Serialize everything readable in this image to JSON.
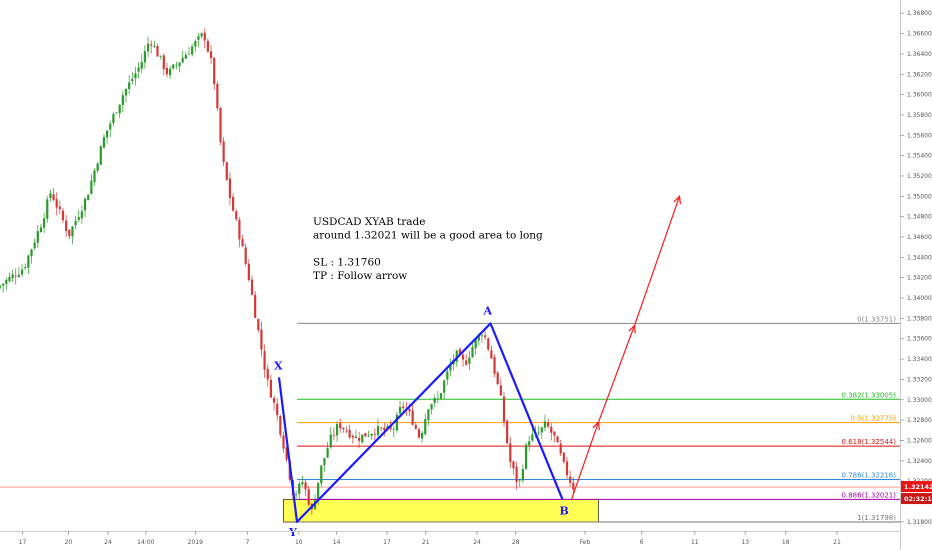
{
  "chart_data": {
    "type": "candlestick",
    "y_axis": {
      "range": [
        1.3171,
        1.3693
      ],
      "ticks": [
        "1.36800",
        "1.36600",
        "1.36400",
        "1.36200",
        "1.36000",
        "1.35800",
        "1.35600",
        "1.35400",
        "1.35200",
        "1.35000",
        "1.34800",
        "1.34600",
        "1.34400",
        "1.34200",
        "1.34000",
        "1.33800",
        "1.33600",
        "1.33400",
        "1.33200",
        "1.33000",
        "1.32800",
        "1.32600",
        "1.32400",
        "1.32200",
        "1.32000",
        "1.31800"
      ]
    },
    "x_axis": {
      "range": [
        0,
        100
      ],
      "ticks": [
        {
          "label": "17",
          "x": 2.5
        },
        {
          "label": "20",
          "x": 7.6
        },
        {
          "label": "24",
          "x": 12.0
        },
        {
          "label": "14:00",
          "x": 16.2
        },
        {
          "label": "2019",
          "x": 21.7
        },
        {
          "label": "7",
          "x": 27.5
        },
        {
          "label": "10",
          "x": 33.2
        },
        {
          "label": "14",
          "x": 37.4
        },
        {
          "label": "17",
          "x": 43.0
        },
        {
          "label": "21",
          "x": 47.3
        },
        {
          "label": "24",
          "x": 53.0
        },
        {
          "label": "28",
          "x": 57.3
        },
        {
          "label": "Feb",
          "x": 65.0
        },
        {
          "label": "6",
          "x": 71.3
        },
        {
          "label": "11",
          "x": 77.2
        },
        {
          "label": "13",
          "x": 82.8
        },
        {
          "label": "18",
          "x": 87.3
        },
        {
          "label": "21",
          "x": 93.0
        }
      ]
    },
    "price_path": [
      [
        0,
        1.341
      ],
      [
        3,
        1.343
      ],
      [
        5,
        1.3475
      ],
      [
        6,
        1.3505
      ],
      [
        8,
        1.3462
      ],
      [
        10,
        1.35
      ],
      [
        12,
        1.356
      ],
      [
        14,
        1.36
      ],
      [
        16,
        1.363
      ],
      [
        17,
        1.3655
      ],
      [
        19,
        1.362
      ],
      [
        21,
        1.364
      ],
      [
        23,
        1.366
      ],
      [
        24,
        1.3625
      ],
      [
        25,
        1.354
      ],
      [
        26,
        1.3495
      ],
      [
        27,
        1.346
      ],
      [
        28,
        1.342
      ],
      [
        29,
        1.337
      ],
      [
        30,
        1.332
      ],
      [
        31,
        1.329
      ],
      [
        32,
        1.325
      ],
      [
        33,
        1.3205
      ],
      [
        34,
        1.322
      ],
      [
        35,
        1.319
      ],
      [
        36,
        1.3232
      ],
      [
        37,
        1.326
      ],
      [
        38,
        1.3276
      ],
      [
        40,
        1.3262
      ],
      [
        42,
        1.327
      ],
      [
        44,
        1.327
      ],
      [
        45,
        1.3295
      ],
      [
        46,
        1.3284
      ],
      [
        47,
        1.3262
      ],
      [
        48,
        1.3296
      ],
      [
        49,
        1.33
      ],
      [
        50,
        1.3325
      ],
      [
        51,
        1.3345
      ],
      [
        52,
        1.3335
      ],
      [
        53,
        1.3355
      ],
      [
        54,
        1.3368
      ],
      [
        55,
        1.334
      ],
      [
        56,
        1.33
      ],
      [
        57,
        1.324
      ],
      [
        58,
        1.3215
      ],
      [
        59,
        1.3262
      ],
      [
        60,
        1.3265
      ],
      [
        61,
        1.3276
      ],
      [
        62,
        1.3262
      ],
      [
        63,
        1.3235
      ],
      [
        64,
        1.3214
      ]
    ],
    "pattern": {
      "name": "XYAB",
      "points": [
        {
          "label": "X",
          "x": 31,
          "y": 1.3322
        },
        {
          "label": "Y",
          "x": 33,
          "y": 1.318
        },
        {
          "label": "A",
          "x": 54.5,
          "y": 1.33751
        },
        {
          "label": "B",
          "x": 62.5,
          "y": 1.3202
        }
      ]
    },
    "projection_arrow": [
      [
        63.5,
        1.3202
      ],
      [
        66.5,
        1.3278
      ],
      [
        70.5,
        1.3373
      ],
      [
        75.5,
        1.35
      ]
    ],
    "fib_levels": [
      {
        "label": "0(1.33751)",
        "value": 1.33751,
        "color": "#888888"
      },
      {
        "label": "0.382(1.33005)",
        "value": 1.33005,
        "color": "#22bb22"
      },
      {
        "label": "0.5(1.32775)",
        "value": 1.32775,
        "color": "#ff9900"
      },
      {
        "label": "0.618(1.32544)",
        "value": 1.32544,
        "color": "#dd1111"
      },
      {
        "label": "0.786(1.32216)",
        "value": 1.32216,
        "color": "#3388dd"
      },
      {
        "label": "0.886(1.32021)",
        "value": 1.32021,
        "color": "#aa00aa"
      },
      {
        "label": "1(1.31798)",
        "value": 1.31798,
        "color": "#777777"
      }
    ],
    "entry_zone": {
      "from": 1.31798,
      "to": 1.32021,
      "x_start": 31.5,
      "x_end": 66.5,
      "color": "#ffff55"
    },
    "current_price": {
      "value": "1.32142",
      "timer": "02:32:13",
      "level": 1.32142,
      "color": "#ee1111"
    },
    "annotation": [
      "USDCAD XYAB trade",
      "around 1.32021 will be a good area to long",
      "",
      "SL : 1.31760",
      "TP : Follow arrow"
    ],
    "colors": {
      "bull": "#2a9a2a",
      "bear": "#d63838",
      "pattern": "#1a1aff",
      "arrow": "#ff1a1a"
    }
  }
}
